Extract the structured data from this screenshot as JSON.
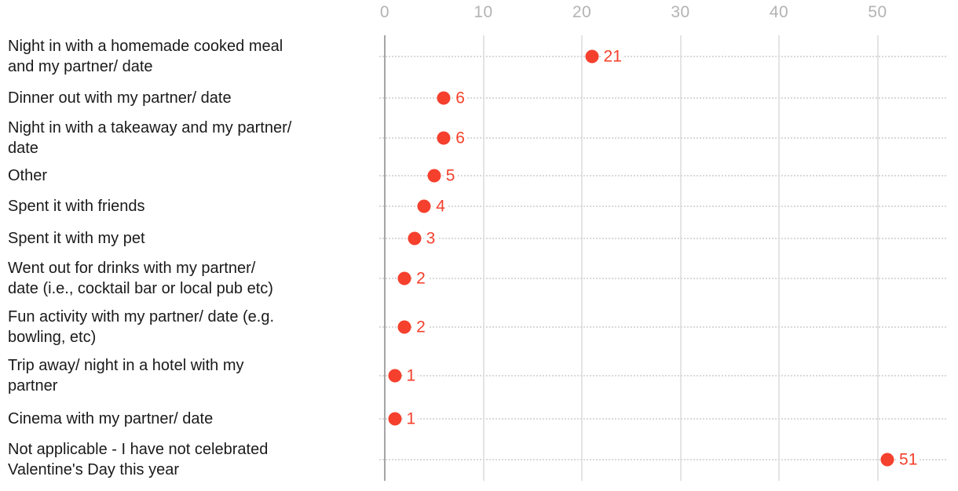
{
  "chart_data": {
    "type": "scatter",
    "subtype": "horizontal-dot-plot",
    "title": "",
    "xlabel": "",
    "ylabel": "",
    "categories": [
      "Night in with a homemade cooked meal and my partner/ date",
      "Dinner out with my partner/ date",
      "Night in with a takeaway and my partner/ date",
      "Other",
      "Spent it with friends",
      "Spent it with my pet",
      "Went out for drinks with my partner/ date (i.e., cocktail bar or local pub etc)",
      "Fun activity with my partner/ date (e.g. bowling, etc)",
      "Trip away/ night in a hotel with my partner",
      "Cinema with my partner/ date",
      "Not applicable - I have not celebrated Valentine's Day this year"
    ],
    "category_display_lines": [
      [
        "Night in with a homemade cooked meal",
        "and my partner/ date"
      ],
      [
        "Dinner out with my partner/ date"
      ],
      [
        "Night in with a takeaway and my partner/",
        "date"
      ],
      [
        "Other"
      ],
      [
        "Spent it with friends"
      ],
      [
        "Spent it with my pet"
      ],
      [
        "Went out for drinks with my partner/",
        "date (i.e., cocktail bar or local pub etc)"
      ],
      [
        "Fun activity with my partner/ date (e.g.",
        "bowling, etc)"
      ],
      [
        "Trip away/ night in a hotel with my",
        "partner"
      ],
      [
        "Cinema with my partner/ date"
      ],
      [
        "Not applicable - I have not celebrated",
        "Valentine's Day this year"
      ]
    ],
    "values": [
      21,
      6,
      6,
      5,
      4,
      3,
      2,
      2,
      1,
      1,
      51
    ],
    "x_ticks": [
      "0",
      "10",
      "20",
      "30",
      "40",
      "50"
    ],
    "x_tick_values": [
      0,
      10,
      20,
      30,
      40,
      50
    ],
    "xlim": [
      0,
      57
    ],
    "grid": "vertical solid gridlines with dotted horizontal row guides",
    "legend": "none",
    "colors": {
      "dot": "#f5402d",
      "value_label": "#f5402d",
      "category_label": "#1a1a1a",
      "tick_label": "#b3b3b6",
      "gridline": "#e4e4e4",
      "axis_line": "#a5a5a5",
      "row_guide": "#d9d9d9",
      "background": "#ffffff"
    }
  }
}
